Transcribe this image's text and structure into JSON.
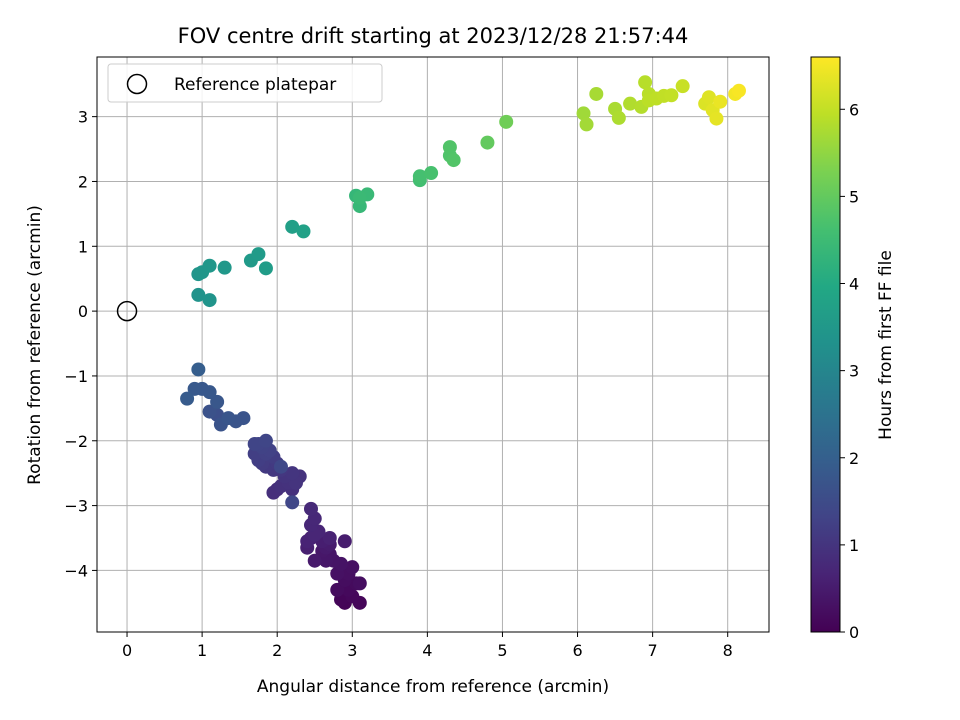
{
  "chart_data": {
    "type": "scatter",
    "title": "FOV centre drift starting at 2023/12/28 21:57:44",
    "xlabel": "Angular distance from reference (arcmin)",
    "ylabel": "Rotation from reference (arcmin)",
    "xlim": [
      -0.4,
      8.55
    ],
    "ylim": [
      -4.95,
      3.92
    ],
    "xticks": [
      0,
      1,
      2,
      3,
      4,
      5,
      6,
      7,
      8
    ],
    "yticks": [
      -4,
      -3,
      -2,
      -1,
      0,
      1,
      2,
      3
    ],
    "grid": true,
    "colormap": "viridis",
    "colorbar": {
      "label": "Hours from first FF file",
      "range": [
        0,
        6.6
      ],
      "ticks": [
        0,
        1,
        2,
        3,
        4,
        5,
        6
      ]
    },
    "legend": {
      "position": "top-left",
      "entries": [
        "Reference platepar"
      ]
    },
    "reference_point": {
      "x": 0,
      "y": 0,
      "marker": "open-circle"
    },
    "points": [
      [
        2.9,
        -4.5,
        0.05
      ],
      [
        2.85,
        -4.45,
        0.08
      ],
      [
        3.1,
        -4.5,
        0.1
      ],
      [
        3.0,
        -4.4,
        0.12
      ],
      [
        2.95,
        -4.3,
        0.15
      ],
      [
        3.05,
        -4.2,
        0.18
      ],
      [
        2.8,
        -4.3,
        0.2
      ],
      [
        2.9,
        -4.15,
        0.22
      ],
      [
        3.1,
        -4.2,
        0.24
      ],
      [
        2.95,
        -4.05,
        0.26
      ],
      [
        3.0,
        -3.95,
        0.28
      ],
      [
        2.8,
        -4.05,
        0.3
      ],
      [
        2.85,
        -3.9,
        0.33
      ],
      [
        2.75,
        -3.85,
        0.36
      ],
      [
        2.7,
        -3.75,
        0.38
      ],
      [
        2.65,
        -3.85,
        0.4
      ],
      [
        2.6,
        -3.7,
        0.42
      ],
      [
        2.5,
        -3.85,
        0.45
      ],
      [
        2.65,
        -3.65,
        0.48
      ],
      [
        2.7,
        -3.6,
        0.5
      ],
      [
        2.9,
        -3.55,
        0.52
      ],
      [
        2.6,
        -3.55,
        0.55
      ],
      [
        2.4,
        -3.65,
        0.58
      ],
      [
        2.45,
        -3.5,
        0.6
      ],
      [
        2.7,
        -3.5,
        0.62
      ],
      [
        2.4,
        -3.55,
        0.65
      ],
      [
        2.55,
        -3.4,
        0.68
      ],
      [
        2.5,
        -3.45,
        0.7
      ],
      [
        2.45,
        -3.3,
        0.72
      ],
      [
        2.5,
        -3.2,
        0.75
      ],
      [
        2.45,
        -3.05,
        0.78
      ],
      [
        2.0,
        -2.75,
        0.85
      ],
      [
        1.95,
        -2.8,
        0.88
      ],
      [
        2.2,
        -2.75,
        0.9
      ],
      [
        2.05,
        -2.7,
        0.92
      ],
      [
        2.15,
        -2.65,
        0.94
      ],
      [
        2.3,
        -2.55,
        0.96
      ],
      [
        2.25,
        -2.65,
        0.98
      ],
      [
        2.1,
        -2.55,
        1.0
      ],
      [
        2.2,
        -2.5,
        1.02
      ],
      [
        2.05,
        -2.45,
        1.05
      ],
      [
        1.95,
        -2.45,
        1.08
      ],
      [
        1.85,
        -2.4,
        1.1
      ],
      [
        2.0,
        -2.35,
        1.12
      ],
      [
        1.8,
        -2.35,
        1.15
      ],
      [
        1.95,
        -2.25,
        1.18
      ],
      [
        1.75,
        -2.3,
        1.2
      ],
      [
        1.7,
        -2.2,
        1.22
      ],
      [
        1.85,
        -2.2,
        1.25
      ],
      [
        1.9,
        -2.15,
        1.27
      ],
      [
        1.8,
        -2.1,
        1.3
      ],
      [
        1.75,
        -2.05,
        1.32
      ],
      [
        1.7,
        -2.05,
        1.35
      ],
      [
        1.85,
        -2.0,
        1.37
      ],
      [
        2.2,
        -2.95,
        1.4
      ],
      [
        2.05,
        -2.4,
        1.42
      ],
      [
        1.2,
        -1.6,
        1.6
      ],
      [
        1.1,
        -1.55,
        1.65
      ],
      [
        1.25,
        -1.75,
        1.68
      ],
      [
        1.45,
        -1.7,
        1.7
      ],
      [
        1.55,
        -1.65,
        1.72
      ],
      [
        1.35,
        -1.65,
        1.74
      ],
      [
        1.2,
        -1.4,
        1.78
      ],
      [
        1.1,
        -1.25,
        1.8
      ],
      [
        1.0,
        -1.2,
        1.82
      ],
      [
        0.9,
        -1.2,
        1.84
      ],
      [
        0.8,
        -1.35,
        1.88
      ],
      [
        0.95,
        -0.9,
        1.95
      ],
      [
        0.95,
        0.25,
        3.35
      ],
      [
        1.1,
        0.17,
        3.38
      ],
      [
        0.95,
        0.57,
        3.42
      ],
      [
        1.0,
        0.6,
        3.45
      ],
      [
        1.1,
        0.7,
        3.48
      ],
      [
        1.3,
        0.67,
        3.5
      ],
      [
        1.65,
        0.78,
        3.55
      ],
      [
        1.75,
        0.88,
        3.58
      ],
      [
        1.85,
        0.66,
        3.62
      ],
      [
        2.2,
        1.3,
        3.7
      ],
      [
        2.35,
        1.23,
        3.75
      ],
      [
        3.05,
        1.78,
        4.35
      ],
      [
        3.1,
        1.62,
        4.38
      ],
      [
        3.2,
        1.8,
        4.42
      ],
      [
        3.1,
        1.75,
        4.45
      ],
      [
        3.9,
        2.02,
        4.6
      ],
      [
        3.9,
        2.08,
        4.63
      ],
      [
        4.05,
        2.13,
        4.66
      ],
      [
        4.3,
        2.4,
        4.75
      ],
      [
        4.3,
        2.53,
        4.78
      ],
      [
        4.35,
        2.33,
        4.8
      ],
      [
        4.8,
        2.6,
        5.0
      ],
      [
        5.05,
        2.92,
        5.15
      ],
      [
        6.08,
        3.05,
        5.65
      ],
      [
        6.12,
        2.88,
        5.68
      ],
      [
        6.25,
        3.35,
        5.72
      ],
      [
        6.5,
        3.12,
        5.75
      ],
      [
        6.55,
        2.98,
        5.78
      ],
      [
        6.7,
        3.2,
        5.82
      ],
      [
        6.85,
        3.15,
        5.85
      ],
      [
        6.9,
        3.53,
        5.88
      ],
      [
        6.95,
        3.35,
        5.9
      ],
      [
        6.95,
        3.25,
        5.92
      ],
      [
        7.05,
        3.28,
        5.95
      ],
      [
        7.15,
        3.32,
        5.98
      ],
      [
        7.25,
        3.33,
        6.0
      ],
      [
        7.4,
        3.47,
        6.05
      ],
      [
        7.7,
        3.2,
        6.25
      ],
      [
        7.75,
        3.3,
        6.28
      ],
      [
        7.8,
        3.1,
        6.32
      ],
      [
        7.85,
        2.97,
        6.35
      ],
      [
        7.9,
        3.23,
        6.4
      ],
      [
        8.1,
        3.35,
        6.5
      ],
      [
        8.15,
        3.4,
        6.55
      ]
    ]
  }
}
